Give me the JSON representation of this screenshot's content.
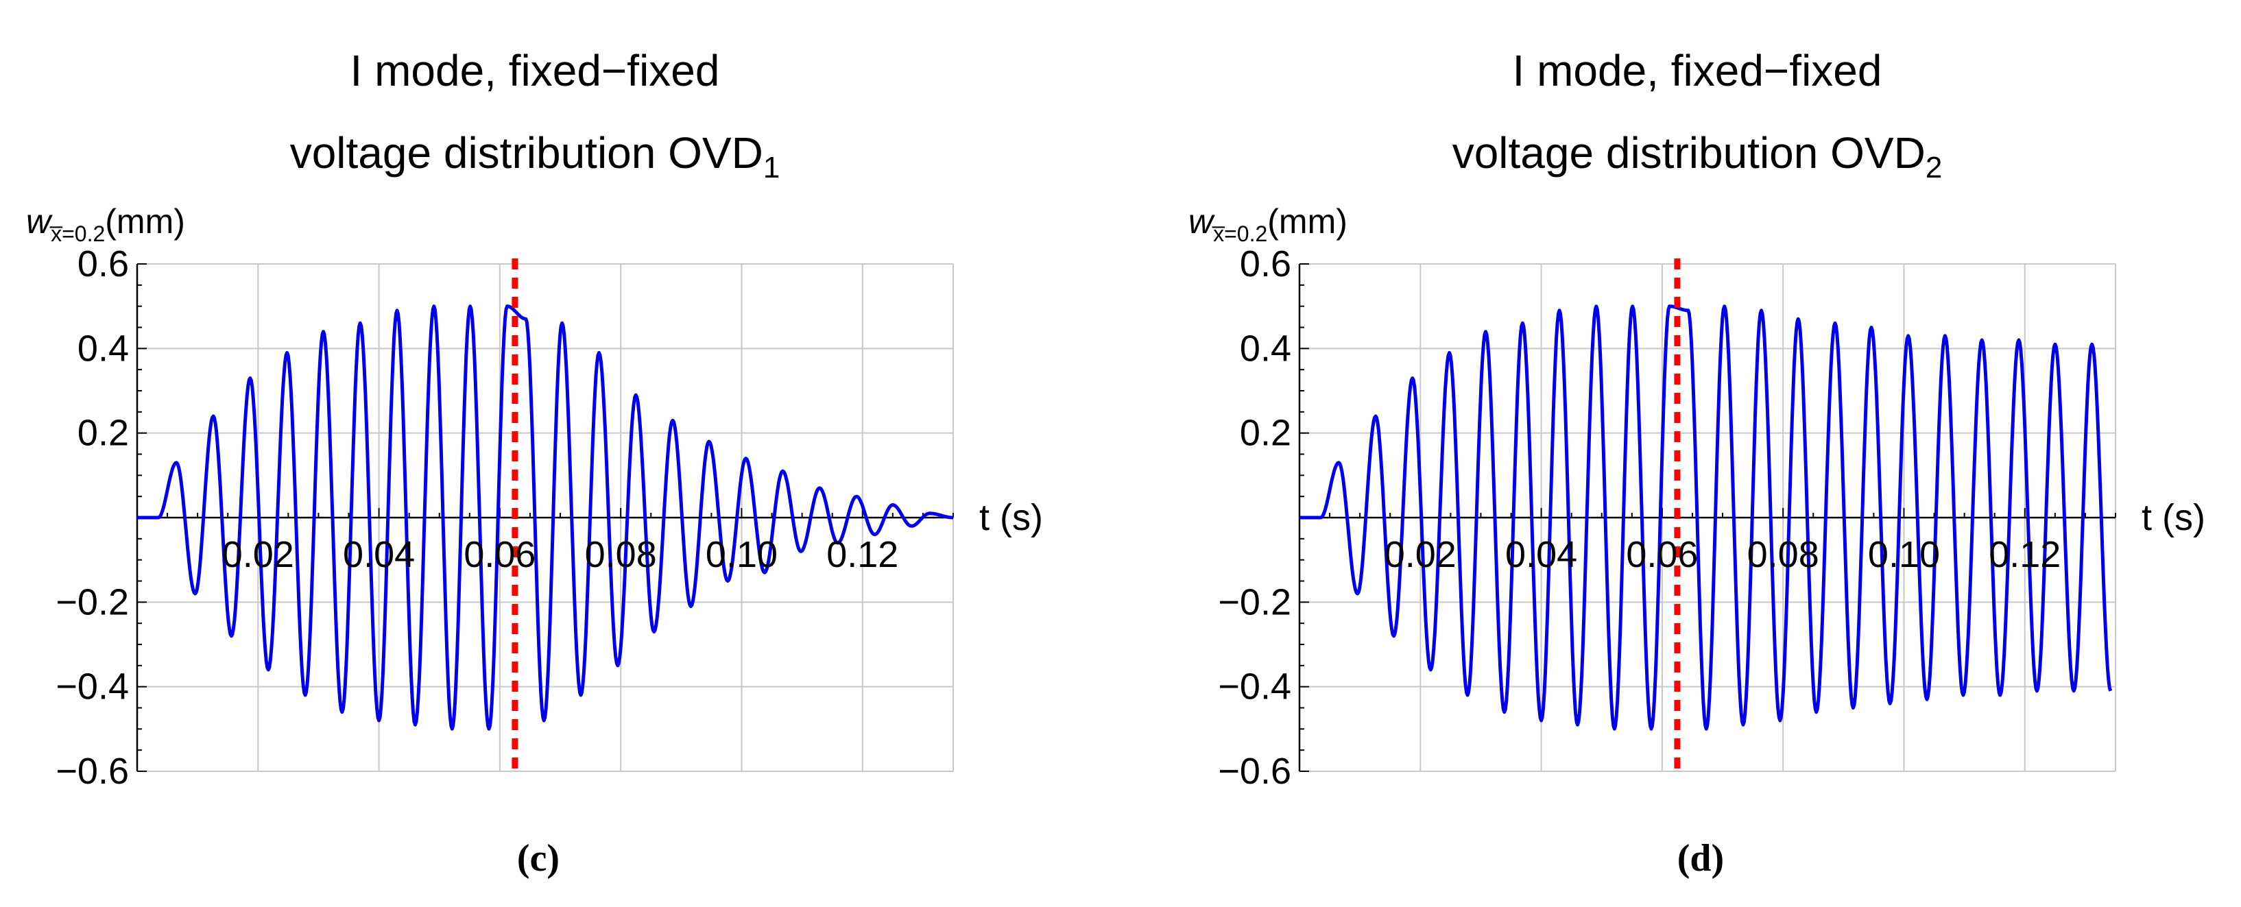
{
  "chart_data": [
    {
      "type": "line",
      "panel": "c",
      "caption": "(c)",
      "title_line1": "I mode, fixed−fixed",
      "title_line2": "voltage distribution OVD",
      "title_sub": "1",
      "ylabel": {
        "main": "w",
        "sub": "x̅=0.2",
        "unit": "(mm)"
      },
      "xlabel": "t (s)",
      "xlim": [
        0,
        0.135
      ],
      "ylim": [
        -0.6,
        0.6
      ],
      "x_ticks": [
        "0.02",
        "0.04",
        "0.06",
        "0.08",
        "0.10",
        "0.12"
      ],
      "y_ticks": [
        "0.6",
        "0.4",
        "0.2",
        "−0.2",
        "−0.4",
        "−0.6"
      ],
      "grid": true,
      "series_color": "#0000ee",
      "marker_color": "#ff0000",
      "marker_x": 0.0625,
      "peaks": [
        [
          0.0065,
          0.13
        ],
        [
          0.0096,
          -0.18
        ],
        [
          0.0126,
          0.24
        ],
        [
          0.0156,
          -0.28
        ],
        [
          0.0187,
          0.33
        ],
        [
          0.0217,
          -0.36
        ],
        [
          0.0248,
          0.39
        ],
        [
          0.0278,
          -0.42
        ],
        [
          0.0308,
          0.44
        ],
        [
          0.0339,
          -0.46
        ],
        [
          0.0369,
          0.46
        ],
        [
          0.04,
          -0.48
        ],
        [
          0.043,
          0.49
        ],
        [
          0.046,
          -0.49
        ],
        [
          0.0491,
          0.5
        ],
        [
          0.0521,
          -0.5
        ],
        [
          0.0551,
          0.5
        ],
        [
          0.0582,
          -0.5
        ],
        [
          0.0612,
          0.5
        ],
        [
          0.0643,
          0.47
        ],
        [
          0.0673,
          -0.48
        ],
        [
          0.0703,
          0.46
        ],
        [
          0.0734,
          -0.42
        ],
        [
          0.0764,
          0.39
        ],
        [
          0.0795,
          -0.35
        ],
        [
          0.0825,
          0.29
        ],
        [
          0.0855,
          -0.27
        ],
        [
          0.0886,
          0.23
        ],
        [
          0.0916,
          -0.21
        ],
        [
          0.0946,
          0.18
        ],
        [
          0.0977,
          -0.15
        ],
        [
          0.1007,
          0.14
        ],
        [
          0.1038,
          -0.13
        ],
        [
          0.1068,
          0.11
        ],
        [
          0.1098,
          -0.08
        ],
        [
          0.1129,
          0.07
        ],
        [
          0.1159,
          -0.06
        ],
        [
          0.119,
          0.05
        ],
        [
          0.122,
          -0.04
        ],
        [
          0.125,
          0.03
        ],
        [
          0.1281,
          -0.02
        ],
        [
          0.1311,
          0.01
        ]
      ]
    },
    {
      "type": "line",
      "panel": "d",
      "caption": "(d)",
      "title_line1": "I mode, fixed−fixed",
      "title_line2": "voltage distribution OVD",
      "title_sub": "2",
      "ylabel": {
        "main": "w",
        "sub": "x̅=0.2",
        "unit": "(mm)"
      },
      "xlabel": "t (s)",
      "xlim": [
        0,
        0.135
      ],
      "ylim": [
        -0.6,
        0.6
      ],
      "x_ticks": [
        "0.02",
        "0.04",
        "0.06",
        "0.08",
        "0.10",
        "0.12"
      ],
      "y_ticks": [
        "0.6",
        "0.4",
        "0.2",
        "−0.2",
        "−0.4",
        "−0.6"
      ],
      "grid": true,
      "series_color": "#0000ee",
      "marker_color": "#ff0000",
      "marker_x": 0.0625,
      "peaks": [
        [
          0.0065,
          0.13
        ],
        [
          0.0096,
          -0.18
        ],
        [
          0.0126,
          0.24
        ],
        [
          0.0156,
          -0.28
        ],
        [
          0.0187,
          0.33
        ],
        [
          0.0217,
          -0.36
        ],
        [
          0.0248,
          0.39
        ],
        [
          0.0278,
          -0.42
        ],
        [
          0.0308,
          0.44
        ],
        [
          0.0339,
          -0.46
        ],
        [
          0.0369,
          0.46
        ],
        [
          0.04,
          -0.48
        ],
        [
          0.043,
          0.49
        ],
        [
          0.046,
          -0.49
        ],
        [
          0.0491,
          0.5
        ],
        [
          0.0521,
          -0.5
        ],
        [
          0.0551,
          0.5
        ],
        [
          0.0582,
          -0.5
        ],
        [
          0.0612,
          0.5
        ],
        [
          0.0643,
          0.49
        ],
        [
          0.0673,
          -0.5
        ],
        [
          0.0703,
          0.5
        ],
        [
          0.0734,
          -0.49
        ],
        [
          0.0764,
          0.49
        ],
        [
          0.0795,
          -0.48
        ],
        [
          0.0825,
          0.47
        ],
        [
          0.0855,
          -0.46
        ],
        [
          0.0886,
          0.46
        ],
        [
          0.0916,
          -0.45
        ],
        [
          0.0946,
          0.45
        ],
        [
          0.0977,
          -0.44
        ],
        [
          0.1007,
          0.43
        ],
        [
          0.1038,
          -0.43
        ],
        [
          0.1068,
          0.43
        ],
        [
          0.1098,
          -0.42
        ],
        [
          0.1129,
          0.42
        ],
        [
          0.1159,
          -0.42
        ],
        [
          0.119,
          0.42
        ],
        [
          0.122,
          -0.41
        ],
        [
          0.125,
          0.41
        ],
        [
          0.1281,
          -0.41
        ],
        [
          0.1311,
          0.41
        ],
        [
          0.1342,
          -0.41
        ]
      ]
    }
  ]
}
